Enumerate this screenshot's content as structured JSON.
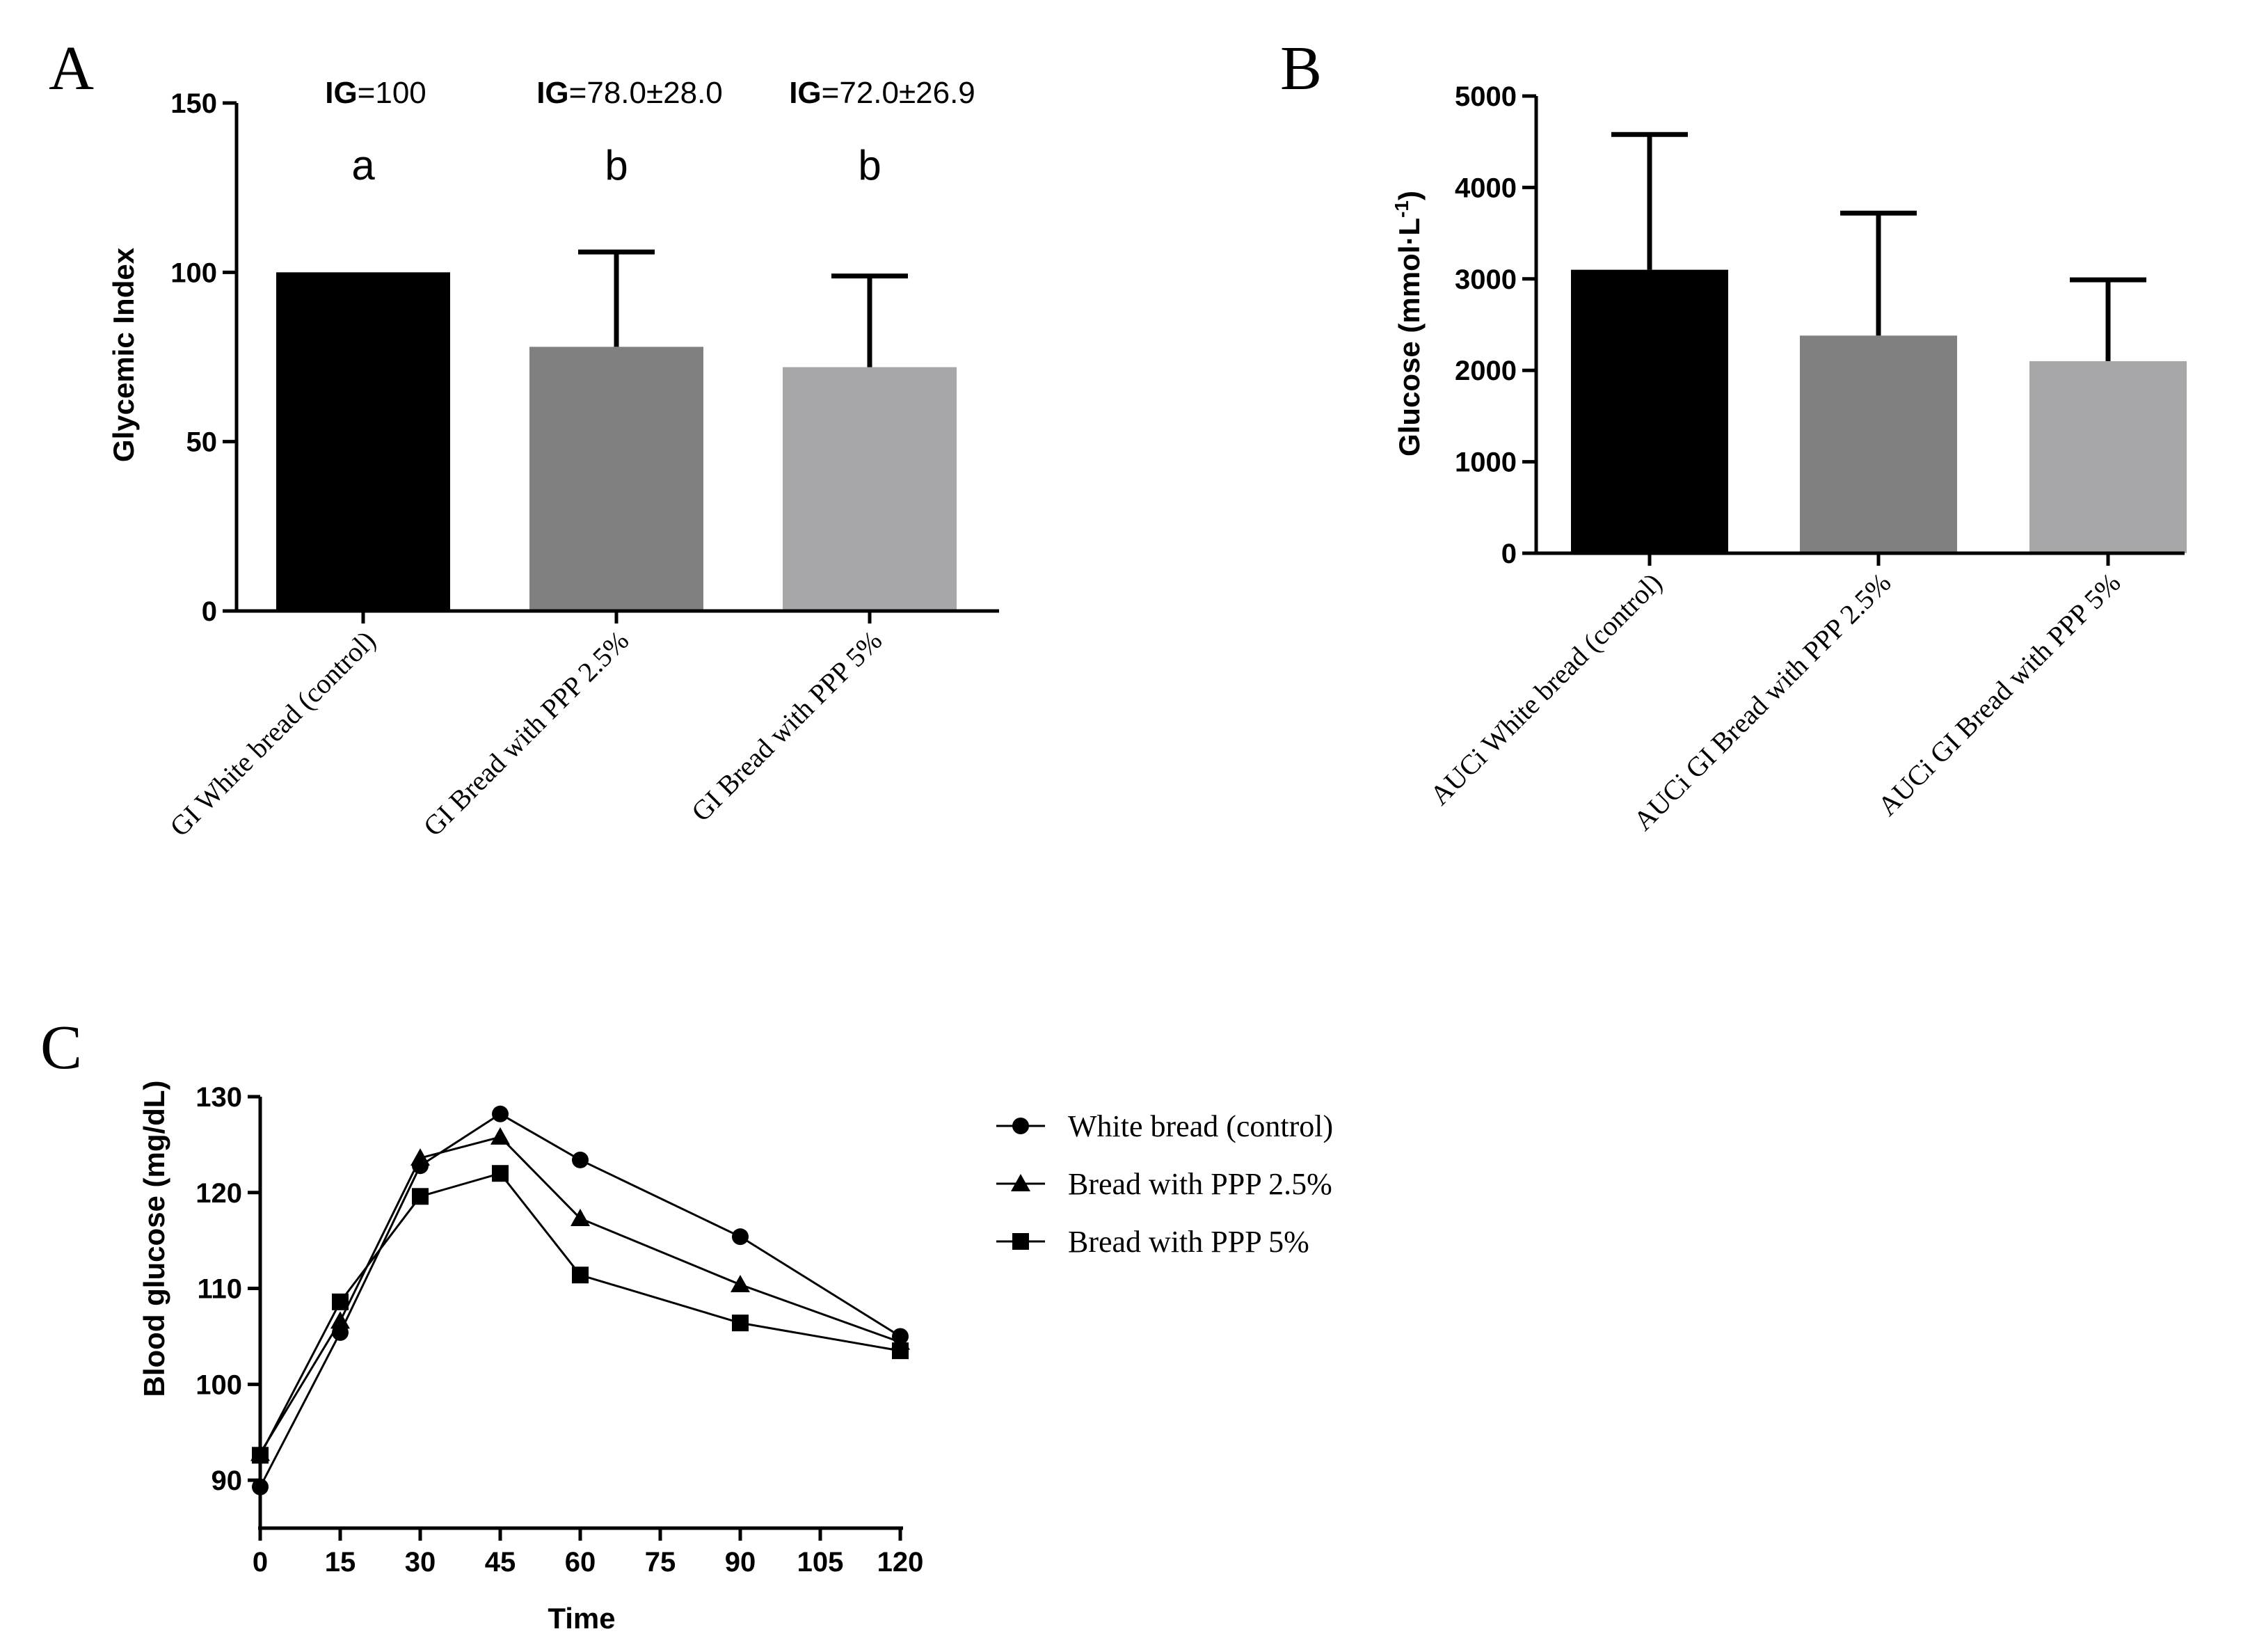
{
  "panels": {
    "a": "A",
    "b": "B",
    "c": "C"
  },
  "chart_data": [
    {
      "id": "A",
      "type": "bar",
      "title": "",
      "xlabel": "",
      "ylabel": "Glycemic Index",
      "ylim": [
        0,
        150
      ],
      "yticks": [
        0,
        50,
        100,
        150
      ],
      "categories": [
        "GI White bread (control)",
        "GI Bread with PPP 2.5%",
        "GI Bread with PPP 5%"
      ],
      "values": [
        100,
        78,
        72
      ],
      "errors": [
        0,
        28,
        26.9
      ],
      "colors": [
        "#000000",
        "#808080",
        "#a7a6a9"
      ],
      "significance": [
        "a",
        "b",
        "b"
      ],
      "annotations": [
        {
          "label": "IG",
          "value": "=100"
        },
        {
          "label": "IG",
          "value": "=78.0±28.0"
        },
        {
          "label": "IG",
          "value": "=72.0±26.9"
        }
      ]
    },
    {
      "id": "B",
      "type": "bar",
      "title": "",
      "xlabel": "",
      "ylabel_main": "Glucose (mmol·L",
      "ylabel_sup": "-1",
      "ylabel_end": ")",
      "ylim": [
        0,
        5000
      ],
      "yticks": [
        0,
        1000,
        2000,
        3000,
        4000,
        5000
      ],
      "categories": [
        "AUCi White bread (control)",
        "AUCi GI Bread with PPP 2.5%",
        "AUCi GI Bread with PPP 5%"
      ],
      "values": [
        3100,
        2380,
        2100
      ],
      "errors": [
        1480,
        1340,
        890
      ],
      "colors": [
        "#000000",
        "#808080",
        "#a7a6a9"
      ]
    },
    {
      "id": "C",
      "type": "line",
      "title": "",
      "xlabel": "Time",
      "ylabel": "Blood glucose (mg/dL)",
      "xlim": [
        0,
        120
      ],
      "ylim": [
        85,
        130
      ],
      "xticks": [
        0,
        15,
        30,
        45,
        60,
        75,
        90,
        105,
        120
      ],
      "yticks": [
        90,
        100,
        110,
        120,
        130
      ],
      "x": [
        0,
        15,
        30,
        45,
        60,
        90,
        120
      ],
      "series": [
        {
          "name": "White bread (control)",
          "marker": "circle",
          "values": [
            89.3,
            105.4,
            122.8,
            128.2,
            123.4,
            115.4,
            105.0
          ]
        },
        {
          "name": "Bread with PPP 2.5%",
          "marker": "triangle",
          "values": [
            92.8,
            106.6,
            123.6,
            125.8,
            117.3,
            110.4,
            104.4
          ]
        },
        {
          "name": "Bread with PPP 5%",
          "marker": "square",
          "values": [
            92.6,
            108.6,
            119.6,
            122.0,
            111.4,
            106.4,
            103.5
          ]
        }
      ]
    }
  ]
}
